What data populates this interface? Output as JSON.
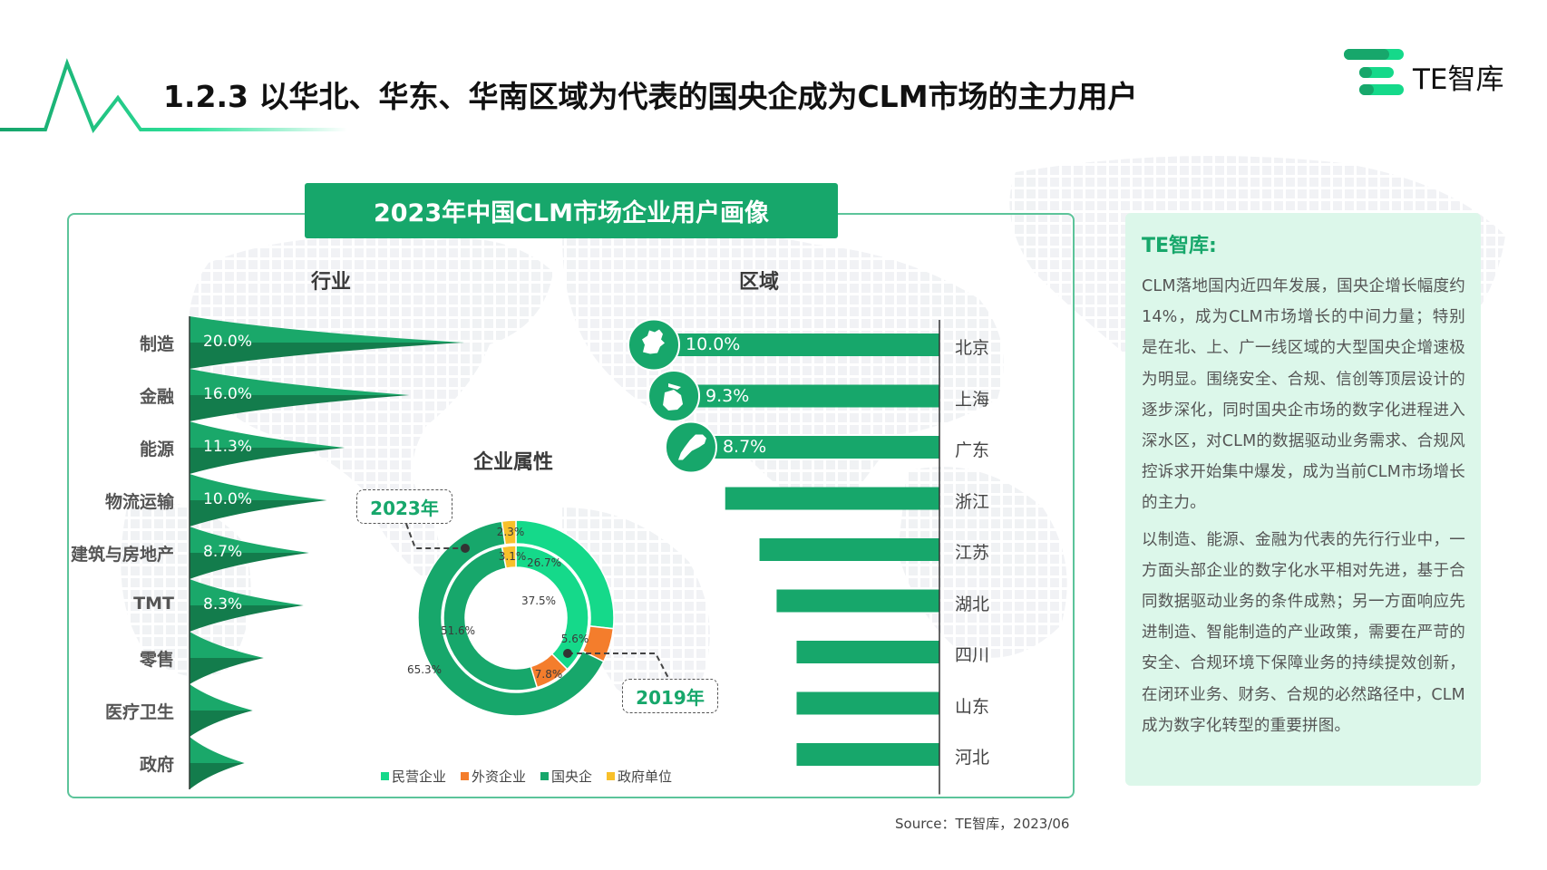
{
  "header": {
    "title": "1.2.3 以华北、华东、华南区域为代表的国央企成为CLM市场的主力用户",
    "logo_text": "TE智库",
    "accent_color": "#17a76b"
  },
  "card": {
    "banner_title": "2023年中国CLM市场企业用户画像"
  },
  "chart_data": [
    {
      "type": "bar",
      "orientation": "horizontal",
      "title": "行业",
      "categories": [
        "制造",
        "金融",
        "能源",
        "物流运输",
        "建筑与房地产",
        "TMT",
        "零售",
        "医疗卫生",
        "政府"
      ],
      "values": [
        20.0,
        16.0,
        11.3,
        10.0,
        8.7,
        8.3,
        5.4,
        4.6,
        4.0
      ],
      "value_labels": [
        "20.0%",
        "16.0%",
        "11.3%",
        "10.0%",
        "8.7%",
        "8.3%",
        "",
        "",
        ""
      ],
      "unit": "%",
      "colors": {
        "upper": "#1aa86a",
        "lower": "#137c4c"
      }
    },
    {
      "type": "pie",
      "variant": "donut-two-rings",
      "title": "企业属性",
      "legend": [
        "民营企业",
        "外资企业",
        "国央企",
        "政府单位"
      ],
      "legend_position": "bottom",
      "colors": [
        "#15d98a",
        "#f47d2c",
        "#17a76b",
        "#f8c02a"
      ],
      "series": [
        {
          "name": "2023年",
          "ring": "outer",
          "values": [
            26.7,
            5.6,
            65.3,
            2.3
          ],
          "labels": [
            "26.7%",
            "5.6%",
            "65.3%",
            "2.3%"
          ]
        },
        {
          "name": "2019年",
          "ring": "inner",
          "values": [
            37.5,
            7.8,
            51.6,
            3.1
          ],
          "labels": [
            "37.5%",
            "7.8%",
            "51.6%",
            "3.1%"
          ]
        }
      ]
    },
    {
      "type": "bar",
      "orientation": "horizontal-reversed",
      "title": "区域",
      "categories": [
        "北京",
        "上海",
        "广东",
        "浙江",
        "江苏",
        "湖北",
        "四川",
        "山东",
        "河北"
      ],
      "values": [
        10.0,
        9.3,
        8.7,
        7.5,
        6.3,
        5.7,
        5.0,
        5.0,
        5.0
      ],
      "value_labels": [
        "10.0%",
        "9.3%",
        "8.7%",
        "",
        "",
        "",
        "",
        "",
        ""
      ],
      "unit": "%",
      "color": "#17a76b",
      "map_icons": [
        "beijing-map-icon",
        "shanghai-map-icon",
        "guangdong-map-icon"
      ]
    }
  ],
  "panel": {
    "title": "TE智库:",
    "paragraphs": [
      "CLM落地国内近四年发展，国央企增长幅度约14%，成为CLM市场增长的中间力量；特别是在北、上、广一线区域的大型国央企增速极为明显。围绕安全、合规、信创等顶层设计的逐步深化，同时国央企市场的数字化进程进入深水区，对CLM的数据驱动业务需求、合规风控诉求开始集中爆发，成为当前CLM市场增长的主力。",
      "以制造、能源、金融为代表的先行行业中，一方面头部企业的数字化水平相对先进，基于合同数据驱动业务的条件成熟；另一方面响应先进制造、智能制造的产业政策，需要在严苛的安全、合规环境下保障业务的持续提效创新，在闭环业务、财务、合规的必然路径中，CLM成为数字化转型的重要拼图。"
    ]
  },
  "source": "Source：TE智库，2023/06"
}
